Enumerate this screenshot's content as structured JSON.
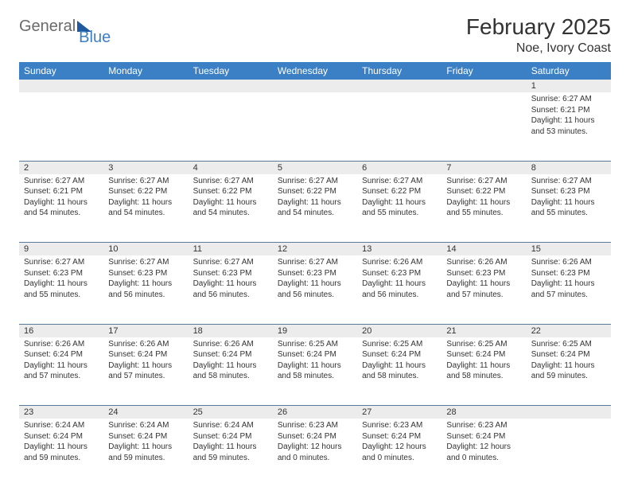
{
  "logo": {
    "part1": "General",
    "part2": "Blue"
  },
  "title": "February 2025",
  "location": "Noe, Ivory Coast",
  "colors": {
    "header_bg": "#3b7fc4",
    "header_fg": "#ffffff",
    "daynum_bg": "#ececec",
    "border": "#5a7a9a",
    "text": "#333333"
  },
  "weekdays": [
    "Sunday",
    "Monday",
    "Tuesday",
    "Wednesday",
    "Thursday",
    "Friday",
    "Saturday"
  ],
  "weeks": [
    {
      "nums": [
        "",
        "",
        "",
        "",
        "",
        "",
        "1"
      ],
      "cells": [
        "",
        "",
        "",
        "",
        "",
        "",
        "Sunrise: 6:27 AM\nSunset: 6:21 PM\nDaylight: 11 hours and 53 minutes."
      ]
    },
    {
      "nums": [
        "2",
        "3",
        "4",
        "5",
        "6",
        "7",
        "8"
      ],
      "cells": [
        "Sunrise: 6:27 AM\nSunset: 6:21 PM\nDaylight: 11 hours and 54 minutes.",
        "Sunrise: 6:27 AM\nSunset: 6:22 PM\nDaylight: 11 hours and 54 minutes.",
        "Sunrise: 6:27 AM\nSunset: 6:22 PM\nDaylight: 11 hours and 54 minutes.",
        "Sunrise: 6:27 AM\nSunset: 6:22 PM\nDaylight: 11 hours and 54 minutes.",
        "Sunrise: 6:27 AM\nSunset: 6:22 PM\nDaylight: 11 hours and 55 minutes.",
        "Sunrise: 6:27 AM\nSunset: 6:22 PM\nDaylight: 11 hours and 55 minutes.",
        "Sunrise: 6:27 AM\nSunset: 6:23 PM\nDaylight: 11 hours and 55 minutes."
      ]
    },
    {
      "nums": [
        "9",
        "10",
        "11",
        "12",
        "13",
        "14",
        "15"
      ],
      "cells": [
        "Sunrise: 6:27 AM\nSunset: 6:23 PM\nDaylight: 11 hours and 55 minutes.",
        "Sunrise: 6:27 AM\nSunset: 6:23 PM\nDaylight: 11 hours and 56 minutes.",
        "Sunrise: 6:27 AM\nSunset: 6:23 PM\nDaylight: 11 hours and 56 minutes.",
        "Sunrise: 6:27 AM\nSunset: 6:23 PM\nDaylight: 11 hours and 56 minutes.",
        "Sunrise: 6:26 AM\nSunset: 6:23 PM\nDaylight: 11 hours and 56 minutes.",
        "Sunrise: 6:26 AM\nSunset: 6:23 PM\nDaylight: 11 hours and 57 minutes.",
        "Sunrise: 6:26 AM\nSunset: 6:23 PM\nDaylight: 11 hours and 57 minutes."
      ]
    },
    {
      "nums": [
        "16",
        "17",
        "18",
        "19",
        "20",
        "21",
        "22"
      ],
      "cells": [
        "Sunrise: 6:26 AM\nSunset: 6:24 PM\nDaylight: 11 hours and 57 minutes.",
        "Sunrise: 6:26 AM\nSunset: 6:24 PM\nDaylight: 11 hours and 57 minutes.",
        "Sunrise: 6:26 AM\nSunset: 6:24 PM\nDaylight: 11 hours and 58 minutes.",
        "Sunrise: 6:25 AM\nSunset: 6:24 PM\nDaylight: 11 hours and 58 minutes.",
        "Sunrise: 6:25 AM\nSunset: 6:24 PM\nDaylight: 11 hours and 58 minutes.",
        "Sunrise: 6:25 AM\nSunset: 6:24 PM\nDaylight: 11 hours and 58 minutes.",
        "Sunrise: 6:25 AM\nSunset: 6:24 PM\nDaylight: 11 hours and 59 minutes."
      ]
    },
    {
      "nums": [
        "23",
        "24",
        "25",
        "26",
        "27",
        "28",
        ""
      ],
      "cells": [
        "Sunrise: 6:24 AM\nSunset: 6:24 PM\nDaylight: 11 hours and 59 minutes.",
        "Sunrise: 6:24 AM\nSunset: 6:24 PM\nDaylight: 11 hours and 59 minutes.",
        "Sunrise: 6:24 AM\nSunset: 6:24 PM\nDaylight: 11 hours and 59 minutes.",
        "Sunrise: 6:23 AM\nSunset: 6:24 PM\nDaylight: 12 hours and 0 minutes.",
        "Sunrise: 6:23 AM\nSunset: 6:24 PM\nDaylight: 12 hours and 0 minutes.",
        "Sunrise: 6:23 AM\nSunset: 6:24 PM\nDaylight: 12 hours and 0 minutes.",
        ""
      ]
    }
  ]
}
